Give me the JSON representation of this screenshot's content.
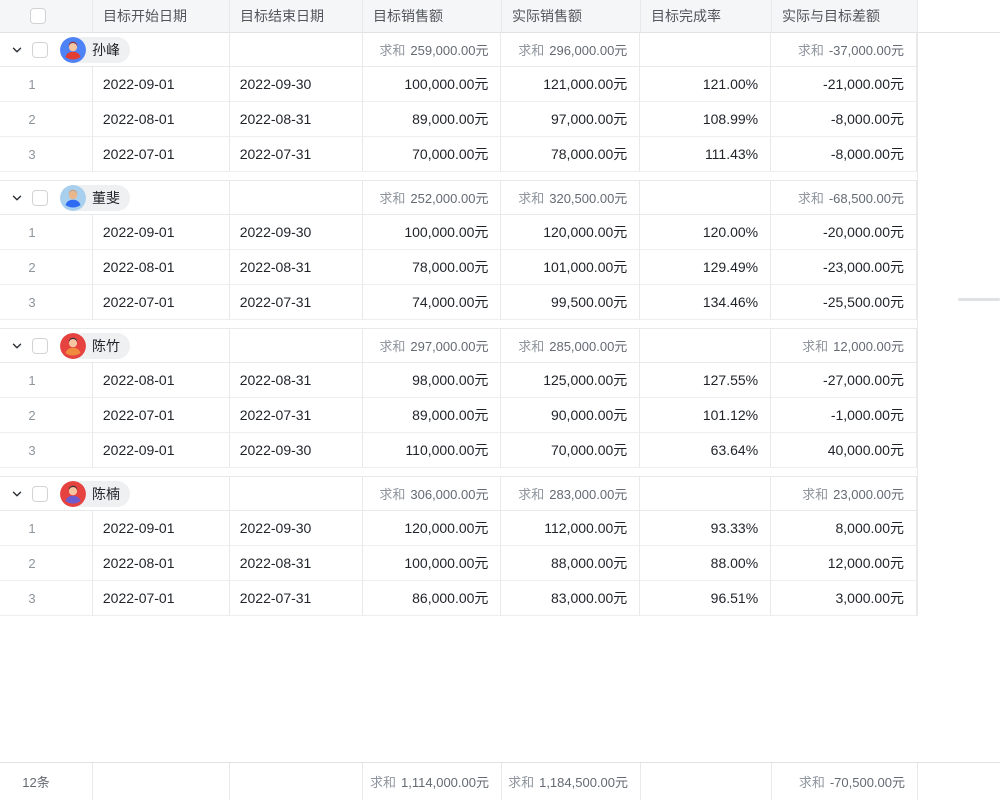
{
  "table": {
    "columns": [
      "目标开始日期",
      "目标结束日期",
      "目标销售额",
      "实际销售额",
      "目标完成率",
      "实际与目标差额"
    ],
    "sum_label": "求和",
    "groups": [
      {
        "name": "孙峰",
        "avatar": {
          "bg": "#4e82f7",
          "hair": "#99322b",
          "skin": "#f7c5a0",
          "shirt": "#e23d33"
        },
        "sums": {
          "target": "259,000.00元",
          "actual": "296,000.00元",
          "diff": "-37,000.00元"
        },
        "rows": [
          {
            "no": "1",
            "start": "2022-09-01",
            "end": "2022-09-30",
            "target": "100,000.00元",
            "actual": "121,000.00元",
            "rate": "121.00%",
            "diff": "-21,000.00元"
          },
          {
            "no": "2",
            "start": "2022-08-01",
            "end": "2022-08-31",
            "target": "89,000.00元",
            "actual": "97,000.00元",
            "rate": "108.99%",
            "diff": "-8,000.00元"
          },
          {
            "no": "3",
            "start": "2022-07-01",
            "end": "2022-07-31",
            "target": "70,000.00元",
            "actual": "78,000.00元",
            "rate": "111.43%",
            "diff": "-8,000.00元"
          }
        ]
      },
      {
        "name": "董斐",
        "avatar": {
          "bg": "#a9cfee",
          "hair": "#cf9c73",
          "skin": "#eab68c",
          "shirt": "#2f6bf2"
        },
        "sums": {
          "target": "252,000.00元",
          "actual": "320,500.00元",
          "diff": "-68,500.00元"
        },
        "rows": [
          {
            "no": "1",
            "start": "2022-09-01",
            "end": "2022-09-30",
            "target": "100,000.00元",
            "actual": "120,000.00元",
            "rate": "120.00%",
            "diff": "-20,000.00元"
          },
          {
            "no": "2",
            "start": "2022-08-01",
            "end": "2022-08-31",
            "target": "78,000.00元",
            "actual": "101,000.00元",
            "rate": "129.49%",
            "diff": "-23,000.00元"
          },
          {
            "no": "3",
            "start": "2022-07-01",
            "end": "2022-07-31",
            "target": "74,000.00元",
            "actual": "99,500.00元",
            "rate": "134.46%",
            "diff": "-25,500.00元"
          }
        ]
      },
      {
        "name": "陈竹",
        "avatar": {
          "bg": "#e64340",
          "hair": "#30343c",
          "skin": "#f7c5a0",
          "shirt": "#f08a3c"
        },
        "sums": {
          "target": "297,000.00元",
          "actual": "285,000.00元",
          "diff": "12,000.00元"
        },
        "rows": [
          {
            "no": "1",
            "start": "2022-08-01",
            "end": "2022-08-31",
            "target": "98,000.00元",
            "actual": "125,000.00元",
            "rate": "127.55%",
            "diff": "-27,000.00元"
          },
          {
            "no": "2",
            "start": "2022-07-01",
            "end": "2022-07-31",
            "target": "89,000.00元",
            "actual": "90,000.00元",
            "rate": "101.12%",
            "diff": "-1,000.00元"
          },
          {
            "no": "3",
            "start": "2022-09-01",
            "end": "2022-09-30",
            "target": "110,000.00元",
            "actual": "70,000.00元",
            "rate": "63.64%",
            "diff": "40,000.00元"
          }
        ]
      },
      {
        "name": "陈楠",
        "avatar": {
          "bg": "#e64340",
          "hair": "#30343c",
          "skin": "#f7c5a0",
          "shirt": "#6d5bd0"
        },
        "sums": {
          "target": "306,000.00元",
          "actual": "283,000.00元",
          "diff": "23,000.00元"
        },
        "rows": [
          {
            "no": "1",
            "start": "2022-09-01",
            "end": "2022-09-30",
            "target": "120,000.00元",
            "actual": "112,000.00元",
            "rate": "93.33%",
            "diff": "8,000.00元"
          },
          {
            "no": "2",
            "start": "2022-08-01",
            "end": "2022-08-31",
            "target": "100,000.00元",
            "actual": "88,000.00元",
            "rate": "88.00%",
            "diff": "12,000.00元"
          },
          {
            "no": "3",
            "start": "2022-07-01",
            "end": "2022-07-31",
            "target": "86,000.00元",
            "actual": "83,000.00元",
            "rate": "96.51%",
            "diff": "3,000.00元"
          }
        ]
      }
    ],
    "footer": {
      "count": "12条",
      "target_sum": "1,114,000.00元",
      "actual_sum": "1,184,500.00元",
      "diff_sum": "-70,500.00元"
    }
  }
}
